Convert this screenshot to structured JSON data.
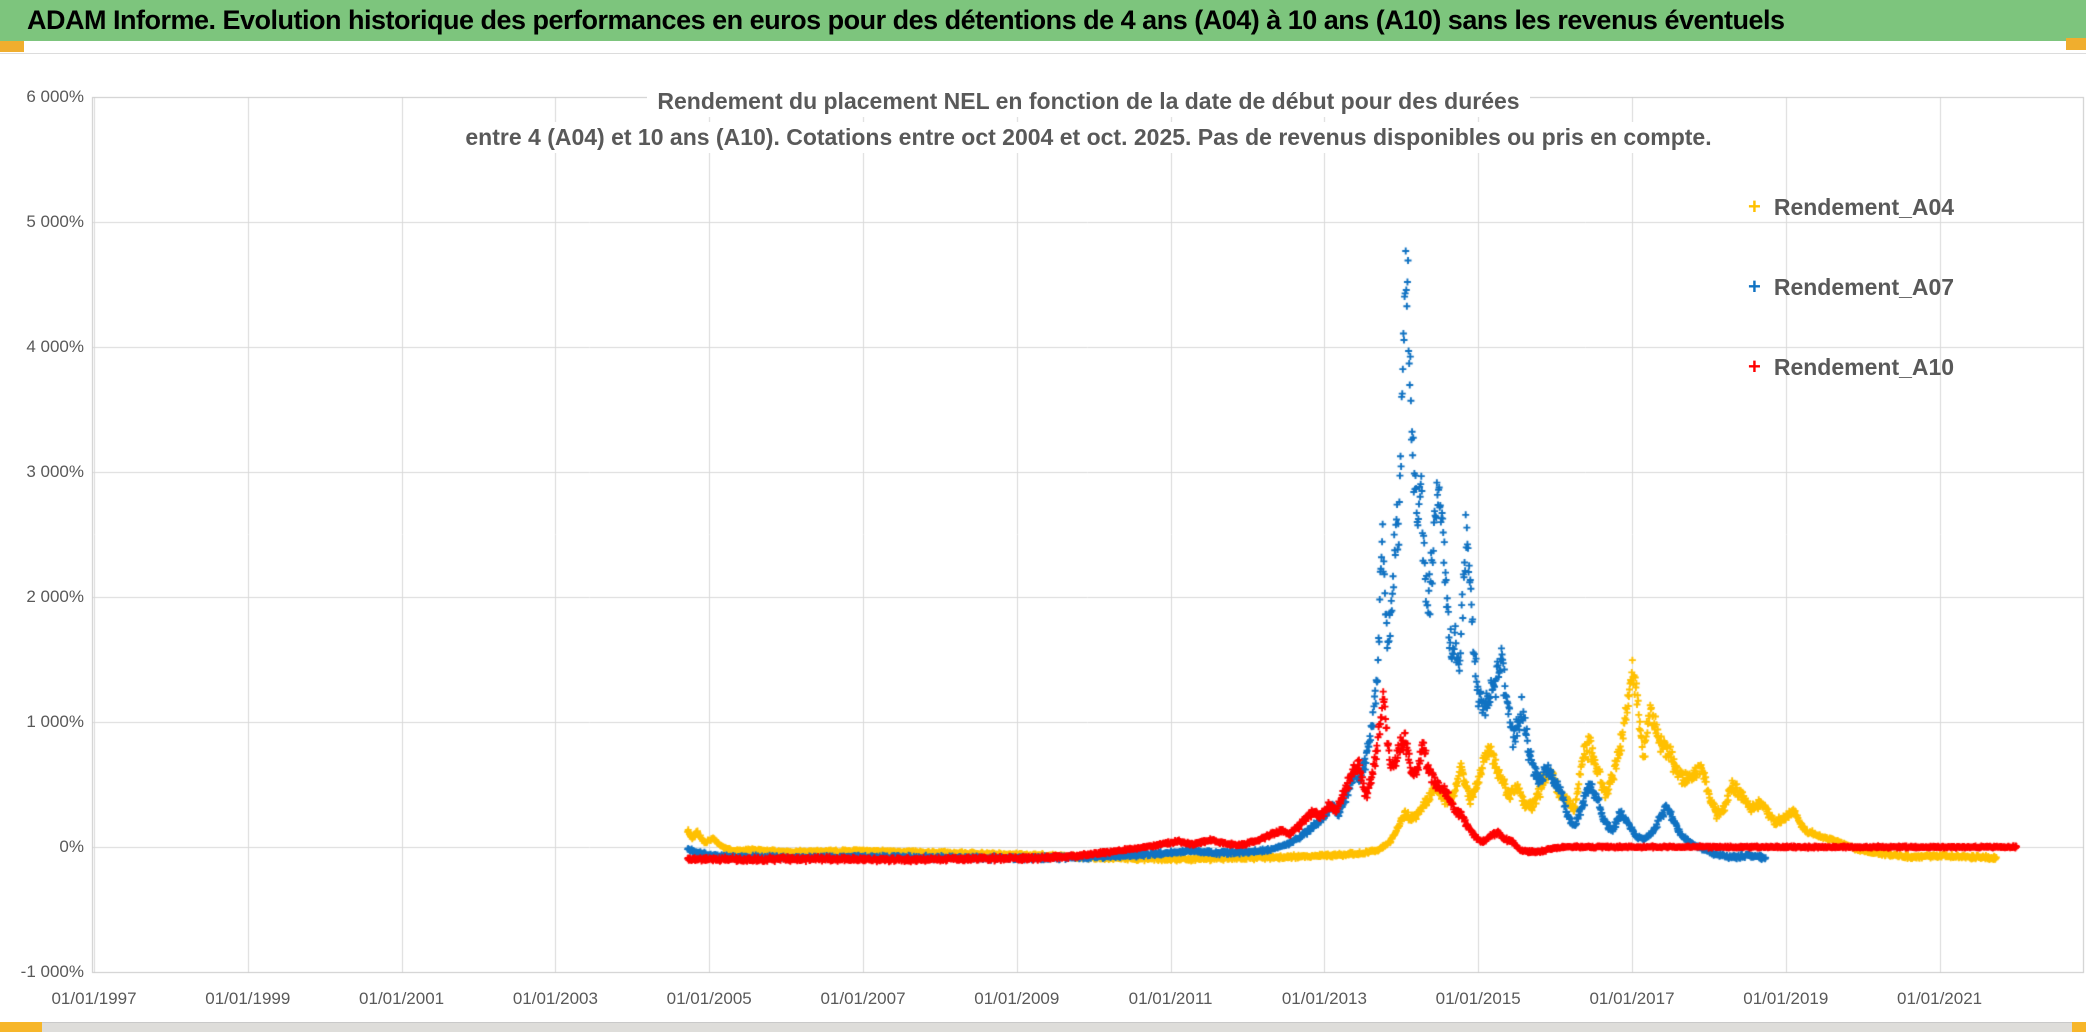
{
  "window": {
    "title": "ADAM Informe. Evolution historique des performances en euros pour des détentions de 4 ans (A04) à 10 ans (A10) sans les revenus éventuels"
  },
  "colors": {
    "title_bar_bg": "#7DC57D",
    "title_text": "#000000",
    "accent_yellow": "#F0AE2E",
    "grid": "#D9D9D9",
    "plot_border": "#C8C8C8",
    "axis_text": "#595959",
    "subtitle_text": "#595959",
    "series_a04": "#FFC000",
    "series_a07": "#1072C2",
    "series_a10": "#FF0000"
  },
  "chart_data": {
    "type": "scatter",
    "marker_glyph": "+",
    "title_line1": "Rendement du placement NEL en fonction de la date de début pour des durées",
    "title_line2": "entre 4 (A04) et 10 ans (A10). Cotations entre oct 2004 et oct. 2025. Pas de revenus disponibles ou pris en compte.",
    "xlim": [
      1997.0,
      2022.95
    ],
    "ylim": [
      -1000,
      6000
    ],
    "grid": true,
    "legend_position": "right",
    "x_tick_years": [
      1997,
      1999,
      2001,
      2003,
      2005,
      2007,
      2009,
      2011,
      2013,
      2015,
      2017,
      2019,
      2021
    ],
    "x_tick_labels": [
      "01/01/1997",
      "01/01/1999",
      "01/01/2001",
      "01/01/2003",
      "01/01/2005",
      "01/01/2007",
      "01/01/2009",
      "01/01/2011",
      "01/01/2013",
      "01/01/2015",
      "01/01/2017",
      "01/01/2019",
      "01/01/2021"
    ],
    "y_ticks": [
      -1000,
      0,
      1000,
      2000,
      3000,
      4000,
      5000,
      6000
    ],
    "y_tick_labels": [
      "-1 000%",
      "0%",
      "1 000%",
      "2 000%",
      "3 000%",
      "4 000%",
      "5 000%",
      "6 000%"
    ],
    "sampling_note": "Daily scatter read from pixels; points below are envelope anchors [decimal_year, percent] of each cloud.",
    "series": [
      {
        "name": "Rendement_A04",
        "color": "#FFC000",
        "points": [
          [
            2004.72,
            140
          ],
          [
            2004.78,
            60
          ],
          [
            2004.84,
            115
          ],
          [
            2004.95,
            35
          ],
          [
            2005.05,
            75
          ],
          [
            2005.15,
            5
          ],
          [
            2005.3,
            -30
          ],
          [
            2005.6,
            -25
          ],
          [
            2006.0,
            -40
          ],
          [
            2006.5,
            -35
          ],
          [
            2007.0,
            -30
          ],
          [
            2007.5,
            -40
          ],
          [
            2008.0,
            -45
          ],
          [
            2008.5,
            -55
          ],
          [
            2009.0,
            -60
          ],
          [
            2009.5,
            -70
          ],
          [
            2010.0,
            -85
          ],
          [
            2010.5,
            -90
          ],
          [
            2011.0,
            -95
          ],
          [
            2011.5,
            -90
          ],
          [
            2012.0,
            -85
          ],
          [
            2012.5,
            -80
          ],
          [
            2012.8,
            -75
          ],
          [
            2013.0,
            -70
          ],
          [
            2013.3,
            -60
          ],
          [
            2013.5,
            -50
          ],
          [
            2013.7,
            -25
          ],
          [
            2013.85,
            40
          ],
          [
            2013.95,
            150
          ],
          [
            2014.05,
            260
          ],
          [
            2014.15,
            220
          ],
          [
            2014.25,
            300
          ],
          [
            2014.35,
            380
          ],
          [
            2014.45,
            480
          ],
          [
            2014.5,
            420
          ],
          [
            2014.6,
            350
          ],
          [
            2014.7,
            450
          ],
          [
            2014.78,
            650
          ],
          [
            2014.84,
            500
          ],
          [
            2014.9,
            380
          ],
          [
            2015.0,
            520
          ],
          [
            2015.08,
            700
          ],
          [
            2015.15,
            780
          ],
          [
            2015.25,
            600
          ],
          [
            2015.32,
            520
          ],
          [
            2015.4,
            400
          ],
          [
            2015.5,
            480
          ],
          [
            2015.6,
            350
          ],
          [
            2015.7,
            320
          ],
          [
            2015.8,
            450
          ],
          [
            2015.88,
            560
          ],
          [
            2015.95,
            600
          ],
          [
            2016.05,
            420
          ],
          [
            2016.15,
            380
          ],
          [
            2016.25,
            300
          ],
          [
            2016.35,
            700
          ],
          [
            2016.45,
            810
          ],
          [
            2016.55,
            620
          ],
          [
            2016.65,
            430
          ],
          [
            2016.75,
            560
          ],
          [
            2016.85,
            820
          ],
          [
            2016.95,
            1160
          ],
          [
            2017.0,
            1390
          ],
          [
            2017.07,
            1210
          ],
          [
            2017.15,
            720
          ],
          [
            2017.22,
            1060
          ],
          [
            2017.3,
            950
          ],
          [
            2017.38,
            820
          ],
          [
            2017.45,
            780
          ],
          [
            2017.55,
            660
          ],
          [
            2017.65,
            530
          ],
          [
            2017.8,
            570
          ],
          [
            2017.9,
            630
          ],
          [
            2018.0,
            420
          ],
          [
            2018.1,
            260
          ],
          [
            2018.2,
            320
          ],
          [
            2018.3,
            490
          ],
          [
            2018.4,
            430
          ],
          [
            2018.55,
            310
          ],
          [
            2018.7,
            350
          ],
          [
            2018.85,
            190
          ],
          [
            2019.0,
            240
          ],
          [
            2019.1,
            280
          ],
          [
            2019.25,
            130
          ],
          [
            2019.4,
            100
          ],
          [
            2019.6,
            60
          ],
          [
            2019.75,
            25
          ],
          [
            2019.9,
            -15
          ],
          [
            2020.1,
            -40
          ],
          [
            2020.3,
            -60
          ],
          [
            2020.6,
            -80
          ],
          [
            2021.0,
            -70
          ],
          [
            2021.4,
            -80
          ],
          [
            2021.74,
            -85
          ]
        ]
      },
      {
        "name": "Rendement_A07",
        "color": "#1072C2",
        "points": [
          [
            2004.72,
            -15
          ],
          [
            2004.85,
            -45
          ],
          [
            2005.0,
            -65
          ],
          [
            2005.3,
            -80
          ],
          [
            2006.0,
            -85
          ],
          [
            2007.0,
            -80
          ],
          [
            2008.0,
            -85
          ],
          [
            2009.0,
            -90
          ],
          [
            2010.0,
            -80
          ],
          [
            2010.7,
            -60
          ],
          [
            2011.0,
            -45
          ],
          [
            2011.3,
            -30
          ],
          [
            2011.6,
            -50
          ],
          [
            2012.0,
            -40
          ],
          [
            2012.3,
            -20
          ],
          [
            2012.55,
            30
          ],
          [
            2012.7,
            90
          ],
          [
            2012.85,
            160
          ],
          [
            2013.0,
            240
          ],
          [
            2013.1,
            330
          ],
          [
            2013.2,
            280
          ],
          [
            2013.3,
            430
          ],
          [
            2013.4,
            610
          ],
          [
            2013.45,
            530
          ],
          [
            2013.55,
            710
          ],
          [
            2013.63,
            990
          ],
          [
            2013.68,
            1320
          ],
          [
            2013.72,
            1820
          ],
          [
            2013.75,
            2620
          ],
          [
            2013.78,
            2230
          ],
          [
            2013.82,
            1620
          ],
          [
            2013.87,
            1960
          ],
          [
            2013.92,
            2420
          ],
          [
            2013.97,
            2720
          ],
          [
            2014.0,
            3320
          ],
          [
            2014.03,
            4120
          ],
          [
            2014.06,
            4760
          ],
          [
            2014.09,
            4230
          ],
          [
            2014.12,
            3640
          ],
          [
            2014.16,
            3120
          ],
          [
            2014.2,
            2640
          ],
          [
            2014.25,
            2920
          ],
          [
            2014.3,
            2320
          ],
          [
            2014.35,
            1940
          ],
          [
            2014.4,
            2240
          ],
          [
            2014.45,
            2720
          ],
          [
            2014.5,
            2960
          ],
          [
            2014.55,
            2420
          ],
          [
            2014.6,
            1940
          ],
          [
            2014.65,
            1560
          ],
          [
            2014.7,
            1740
          ],
          [
            2014.75,
            1340
          ],
          [
            2014.8,
            1980
          ],
          [
            2014.85,
            2560
          ],
          [
            2014.9,
            2080
          ],
          [
            2014.95,
            1520
          ],
          [
            2015.0,
            1180
          ],
          [
            2015.1,
            1140
          ],
          [
            2015.2,
            1280
          ],
          [
            2015.3,
            1500
          ],
          [
            2015.38,
            1150
          ],
          [
            2015.45,
            880
          ],
          [
            2015.52,
            980
          ],
          [
            2015.57,
            1120
          ],
          [
            2015.65,
            800
          ],
          [
            2015.72,
            650
          ],
          [
            2015.8,
            520
          ],
          [
            2015.88,
            640
          ],
          [
            2015.95,
            560
          ],
          [
            2016.06,
            480
          ],
          [
            2016.15,
            260
          ],
          [
            2016.25,
            160
          ],
          [
            2016.35,
            330
          ],
          [
            2016.45,
            490
          ],
          [
            2016.55,
            390
          ],
          [
            2016.65,
            190
          ],
          [
            2016.75,
            130
          ],
          [
            2016.85,
            290
          ],
          [
            2016.95,
            190
          ],
          [
            2017.05,
            90
          ],
          [
            2017.15,
            60
          ],
          [
            2017.25,
            100
          ],
          [
            2017.35,
            210
          ],
          [
            2017.45,
            330
          ],
          [
            2017.55,
            190
          ],
          [
            2017.65,
            90
          ],
          [
            2017.75,
            40
          ],
          [
            2017.85,
            5
          ],
          [
            2017.95,
            -25
          ],
          [
            2018.1,
            -60
          ],
          [
            2018.3,
            -80
          ],
          [
            2018.5,
            -70
          ],
          [
            2018.74,
            -85
          ]
        ]
      },
      {
        "name": "Rendement_A10",
        "color": "#FF0000",
        "points": [
          [
            2004.72,
            -95
          ],
          [
            2005.5,
            -100
          ],
          [
            2006.5,
            -95
          ],
          [
            2007.5,
            -100
          ],
          [
            2008.5,
            -95
          ],
          [
            2009.3,
            -88
          ],
          [
            2009.8,
            -70
          ],
          [
            2010.2,
            -40
          ],
          [
            2010.5,
            -15
          ],
          [
            2010.75,
            5
          ],
          [
            2010.9,
            25
          ],
          [
            2011.1,
            45
          ],
          [
            2011.3,
            20
          ],
          [
            2011.5,
            55
          ],
          [
            2011.7,
            30
          ],
          [
            2011.9,
            15
          ],
          [
            2012.1,
            45
          ],
          [
            2012.3,
            95
          ],
          [
            2012.45,
            140
          ],
          [
            2012.55,
            100
          ],
          [
            2012.65,
            155
          ],
          [
            2012.75,
            225
          ],
          [
            2012.85,
            285
          ],
          [
            2012.95,
            245
          ],
          [
            2013.05,
            330
          ],
          [
            2013.15,
            285
          ],
          [
            2013.25,
            430
          ],
          [
            2013.35,
            560
          ],
          [
            2013.45,
            660
          ],
          [
            2013.5,
            520
          ],
          [
            2013.55,
            410
          ],
          [
            2013.62,
            570
          ],
          [
            2013.68,
            780
          ],
          [
            2013.73,
            1020
          ],
          [
            2013.77,
            1260
          ],
          [
            2013.8,
            950
          ],
          [
            2013.85,
            700
          ],
          [
            2013.9,
            610
          ],
          [
            2013.95,
            760
          ],
          [
            2014.0,
            830
          ],
          [
            2014.05,
            880
          ],
          [
            2014.1,
            700
          ],
          [
            2014.15,
            560
          ],
          [
            2014.2,
            630
          ],
          [
            2014.28,
            790
          ],
          [
            2014.33,
            700
          ],
          [
            2014.4,
            560
          ],
          [
            2014.5,
            480
          ],
          [
            2014.6,
            430
          ],
          [
            2014.7,
            300
          ],
          [
            2014.78,
            260
          ],
          [
            2014.85,
            180
          ],
          [
            2014.95,
            90
          ],
          [
            2015.05,
            40
          ],
          [
            2015.15,
            80
          ],
          [
            2015.25,
            120
          ],
          [
            2015.35,
            60
          ],
          [
            2015.45,
            40
          ],
          [
            2015.55,
            -30
          ],
          [
            2015.75,
            -45
          ],
          [
            2015.95,
            -15
          ],
          [
            2016.1,
            0
          ],
          [
            2022.0,
            0
          ]
        ]
      }
    ]
  }
}
